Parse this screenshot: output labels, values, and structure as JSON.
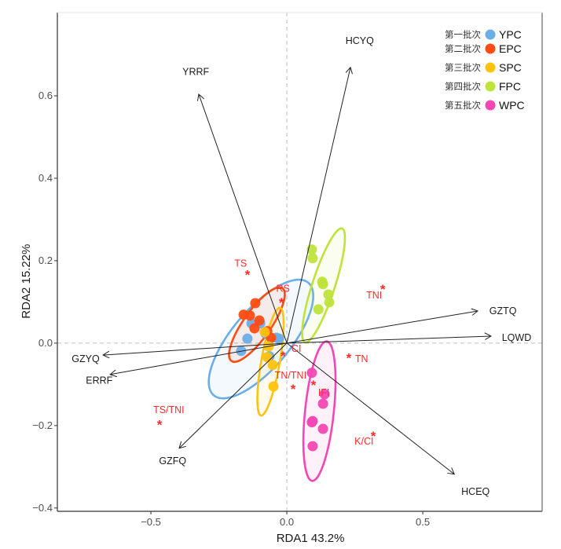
{
  "chart_data": {
    "type": "scatter",
    "subtype": "RDA biplot",
    "title": "",
    "xlabel": "RDA1 43.2%",
    "ylabel": "RDA2 15.22%",
    "xlim": [
      -0.844,
      0.939
    ],
    "ylim": [
      -0.408,
      0.802
    ],
    "x_ticks": [
      -0.5,
      0.0,
      0.5
    ],
    "x_tick_labels": [
      "−0.5",
      "0.0",
      "0.5"
    ],
    "y_ticks": [
      -0.4,
      -0.2,
      0.0,
      0.2,
      0.4,
      0.6
    ],
    "y_tick_labels": [
      "−0.4",
      "−0.2",
      "0.0",
      "0.2",
      "0.4",
      "0.6"
    ],
    "grid": false,
    "zero_lines": "dashed",
    "legend_position": "top-right",
    "series": [
      {
        "name": "YPC",
        "label_cn": "第一批次",
        "color": "#6aaee8",
        "points": [
          [
            -0.168,
            -0.019
          ],
          [
            -0.145,
            0.011
          ],
          [
            -0.13,
            0.048
          ],
          [
            -0.098,
            0.048
          ],
          [
            -0.078,
            0.023
          ],
          [
            -0.064,
            -0.032
          ],
          [
            -0.038,
            0.013
          ],
          [
            -0.029,
            0.011
          ]
        ],
        "ellipse": {
          "cx": -0.095,
          "cy": 0.01,
          "rx": 0.215,
          "ry": 0.085,
          "angle_deg": -50
        }
      },
      {
        "name": "EPC",
        "label_cn": "第二批次",
        "color": "#ff4c12",
        "points": [
          [
            -0.116,
            0.097
          ],
          [
            -0.159,
            0.069
          ],
          [
            -0.136,
            0.067
          ],
          [
            -0.119,
            0.036
          ],
          [
            -0.101,
            0.055
          ],
          [
            -0.058,
            0.013
          ],
          [
            -0.072,
            0.029
          ]
        ],
        "ellipse": {
          "cx": -0.11,
          "cy": 0.045,
          "rx": 0.13,
          "ry": 0.04,
          "angle_deg": -55
        }
      },
      {
        "name": "SPC",
        "label_cn": "第三批次",
        "color": "#ffc20e",
        "points": [
          [
            -0.049,
            -0.105
          ],
          [
            -0.052,
            -0.053
          ],
          [
            -0.081,
            0.027
          ],
          [
            -0.067,
            -0.008
          ],
          [
            -0.072,
            -0.034
          ]
        ],
        "ellipse": {
          "cx": -0.06,
          "cy": -0.045,
          "rx": 0.16,
          "ry": 0.027,
          "angle_deg": -80
        }
      },
      {
        "name": "FPC",
        "label_cn": "第四批次",
        "color": "#bfe33a",
        "points": [
          [
            0.092,
            0.227
          ],
          [
            0.095,
            0.206
          ],
          [
            0.13,
            0.149
          ],
          [
            0.133,
            0.143
          ],
          [
            0.153,
            0.118
          ],
          [
            0.156,
            0.099
          ],
          [
            0.116,
            0.082
          ]
        ],
        "ellipse": {
          "cx": 0.135,
          "cy": 0.14,
          "rx": 0.175,
          "ry": 0.033,
          "angle_deg": -72
        }
      },
      {
        "name": "WPC",
        "label_cn": "第五批次",
        "color": "#f247b4",
        "points": [
          [
            0.092,
            -0.072
          ],
          [
            0.139,
            -0.124
          ],
          [
            0.133,
            -0.147
          ],
          [
            0.095,
            -0.189
          ],
          [
            0.092,
            -0.192
          ],
          [
            0.133,
            -0.208
          ],
          [
            0.095,
            -0.25
          ]
        ],
        "ellipse": {
          "cx": 0.12,
          "cy": -0.165,
          "rx": 0.205,
          "ry": 0.042,
          "angle_deg": -84
        }
      }
    ],
    "arrows": [
      {
        "name": "HCYQ",
        "tip": [
          0.234,
          0.669
        ],
        "label_pos": [
          0.268,
          0.733
        ]
      },
      {
        "name": "YRRF",
        "tip": [
          -0.324,
          0.604
        ],
        "label_pos": [
          -0.335,
          0.658
        ]
      },
      {
        "name": "GZTQ",
        "tip": [
          0.702,
          0.078
        ],
        "label_pos": [
          0.795,
          0.078
        ]
      },
      {
        "name": "LQWD",
        "tip": [
          0.751,
          0.017
        ],
        "label_pos": [
          0.845,
          0.013
        ]
      },
      {
        "name": "GZYQ",
        "tip": [
          -0.676,
          -0.029
        ],
        "label_pos": [
          -0.74,
          -0.038
        ]
      },
      {
        "name": "ERRF",
        "tip": [
          -0.65,
          -0.076
        ],
        "label_pos": [
          -0.69,
          -0.091
        ]
      },
      {
        "name": "GZFQ",
        "tip": [
          -0.396,
          -0.255
        ],
        "label_pos": [
          -0.42,
          -0.286
        ]
      },
      {
        "name": "HCEQ",
        "tip": [
          0.616,
          -0.318
        ],
        "label_pos": [
          0.694,
          -0.36
        ]
      }
    ],
    "factors": [
      {
        "name": "TS",
        "star": [
          -0.145,
          0.17
        ],
        "label_pos": [
          -0.17,
          0.193
        ]
      },
      {
        "name": "RS",
        "star": [
          -0.02,
          0.103
        ],
        "label_pos": [
          -0.014,
          0.132
        ]
      },
      {
        "name": "TNI",
        "star": [
          0.353,
          0.135
        ],
        "label_pos": [
          0.321,
          0.116
        ]
      },
      {
        "name": "CI",
        "star": [
          -0.014,
          -0.027
        ],
        "label_pos": [
          0.035,
          -0.014
        ]
      },
      {
        "name": "TN",
        "star": [
          0.228,
          -0.032
        ],
        "label_pos": [
          0.275,
          -0.038
        ]
      },
      {
        "name": "TN/TNI",
        "star": [
          0.023,
          -0.107
        ],
        "label_pos": [
          0.014,
          -0.078
        ]
      },
      {
        "name": "IFI",
        "star": [
          0.098,
          -0.097
        ],
        "label_pos": [
          0.136,
          -0.12
        ]
      },
      {
        "name": "TS/TNI",
        "star": [
          -0.468,
          -0.194
        ],
        "label_pos": [
          -0.434,
          -0.162
        ]
      },
      {
        "name": "K/CI",
        "star": [
          0.318,
          -0.221
        ],
        "label_pos": [
          0.284,
          -0.238
        ]
      }
    ]
  }
}
